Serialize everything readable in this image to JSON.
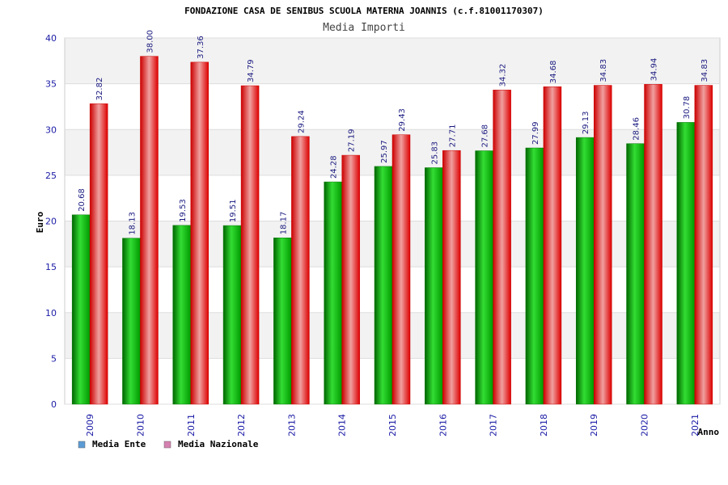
{
  "chart_data": {
    "type": "bar",
    "title": "FONDAZIONE CASA DE SENIBUS SCUOLA MATERNA JOANNIS (c.f.81001170307)",
    "subtitle": "Media Importi",
    "xlabel": "Anno",
    "ylabel": "Euro",
    "ylim": [
      0,
      40
    ],
    "yticks": [
      0,
      5,
      10,
      15,
      20,
      25,
      30,
      35,
      40
    ],
    "grid": true,
    "legend_position": "bottom-left",
    "categories": [
      "2009",
      "2010",
      "2011",
      "2012",
      "2013",
      "2014",
      "2015",
      "2016",
      "2017",
      "2018",
      "2019",
      "2020",
      "2021"
    ],
    "series": [
      {
        "name": "Media Ente",
        "legend_swatch_color": "#5b9bd5",
        "bar_color": "#00b400",
        "values": [
          20.68,
          18.13,
          19.53,
          19.51,
          18.17,
          24.28,
          25.97,
          25.83,
          27.68,
          27.99,
          29.13,
          28.46,
          30.78
        ],
        "labels": [
          "20.68",
          "18.13",
          "19.53",
          "19.51",
          "18.17",
          "24.28",
          "25.97",
          "25.83",
          "27.68",
          "27.99",
          "29.13",
          "28.46",
          "30.78"
        ]
      },
      {
        "name": "Media Nazionale",
        "legend_swatch_color": "#d580b0",
        "bar_color": "#ee0000",
        "values": [
          32.82,
          38.0,
          37.36,
          34.79,
          29.24,
          27.19,
          29.43,
          27.71,
          34.32,
          34.68,
          34.83,
          34.94,
          34.83
        ],
        "labels": [
          "32.82",
          "38.00",
          "37.36",
          "34.79",
          "29.24",
          "27.19",
          "29.43",
          "27.71",
          "34.32",
          "34.68",
          "34.83",
          "34.94",
          "34.83"
        ]
      }
    ]
  }
}
